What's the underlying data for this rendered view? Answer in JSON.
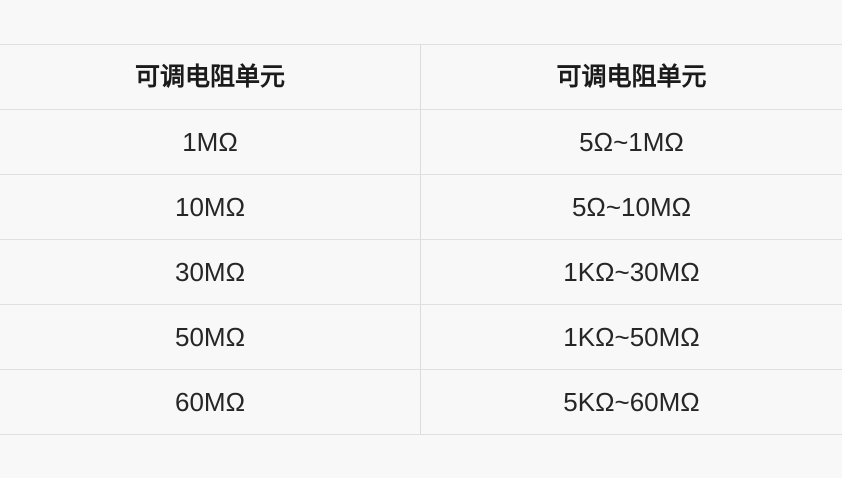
{
  "table": {
    "headers": [
      "可调电阻单元",
      "可调电阻单元"
    ],
    "rows": [
      {
        "cells": [
          "1MΩ",
          "5Ω~1MΩ"
        ]
      },
      {
        "cells": [
          "10MΩ",
          "5Ω~10MΩ"
        ]
      },
      {
        "cells": [
          "30MΩ",
          "1KΩ~30MΩ"
        ]
      },
      {
        "cells": [
          "50MΩ",
          "1KΩ~50MΩ"
        ]
      },
      {
        "cells": [
          "60MΩ",
          "5KΩ~60MΩ"
        ]
      }
    ]
  },
  "colors": {
    "page_background": "#f8f8f8",
    "border": "#e0e0e0",
    "divider": "#dcdcdc",
    "header_text": "#1b1b1b",
    "cell_text": "#262626"
  }
}
